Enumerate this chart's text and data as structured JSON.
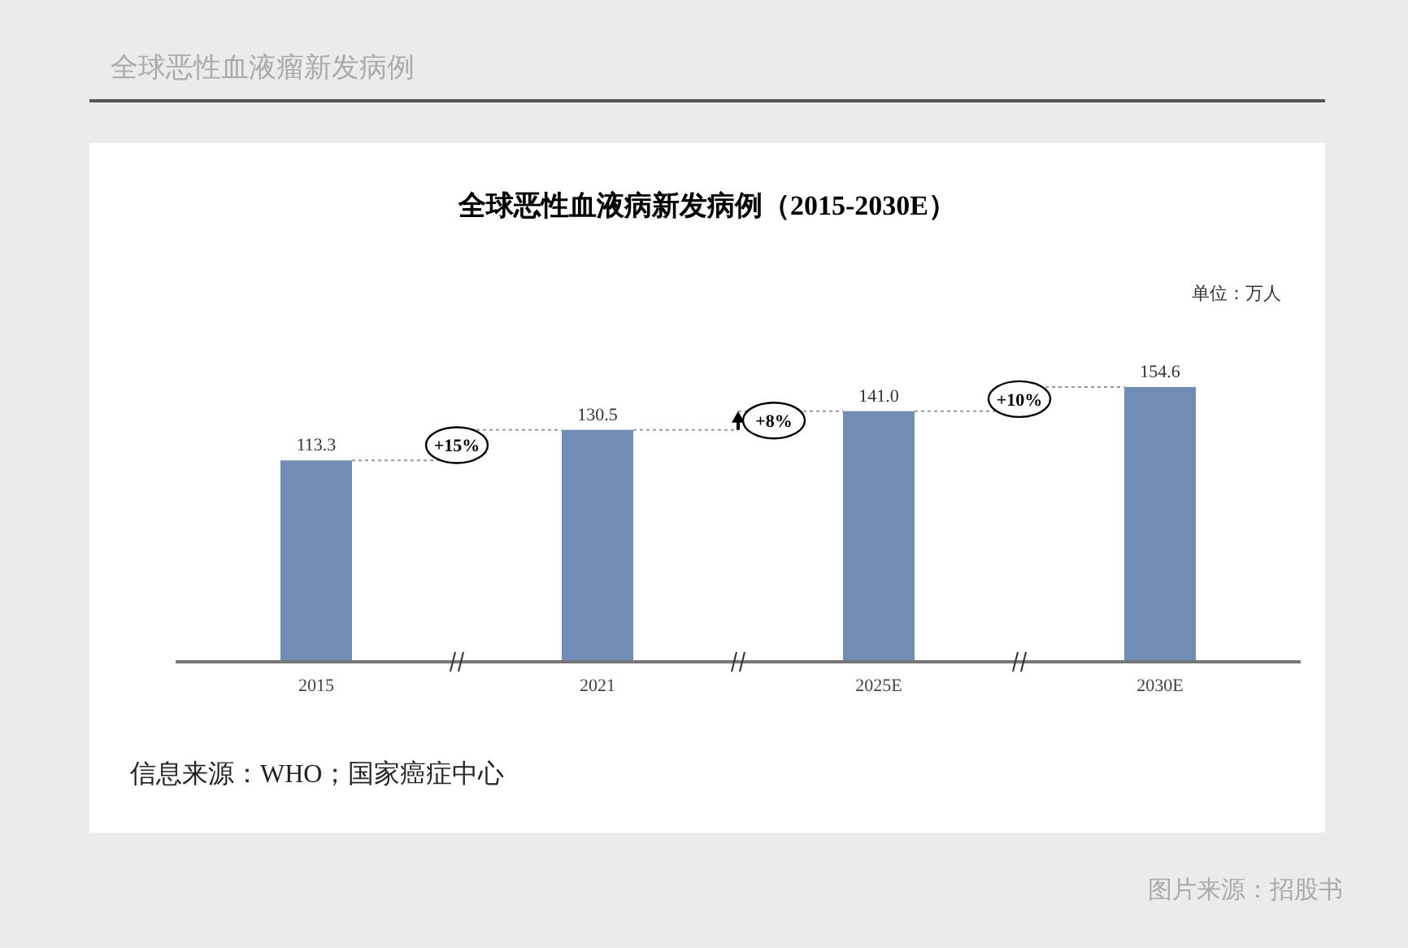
{
  "chart_data": {
    "type": "bar",
    "title": "全球恶性血液病新发病例（2015-2030E）",
    "categories": [
      "2015",
      "2021",
      "2025E",
      "2030E"
    ],
    "values": [
      113.3,
      130.5,
      141.0,
      154.6
    ],
    "value_labels": [
      "113.3",
      "130.5",
      "141.0",
      "154.6"
    ],
    "color": "#6f8db5",
    "tick_labels": "x",
    "annotations": [
      "+15%",
      "+8%",
      "+10%",
      "单位：万人",
      "信息来源：WHO；国家癌症中心",
      "图片来源：招股书",
      "全球恶性血液瘤新发病例"
    ]
  }
}
